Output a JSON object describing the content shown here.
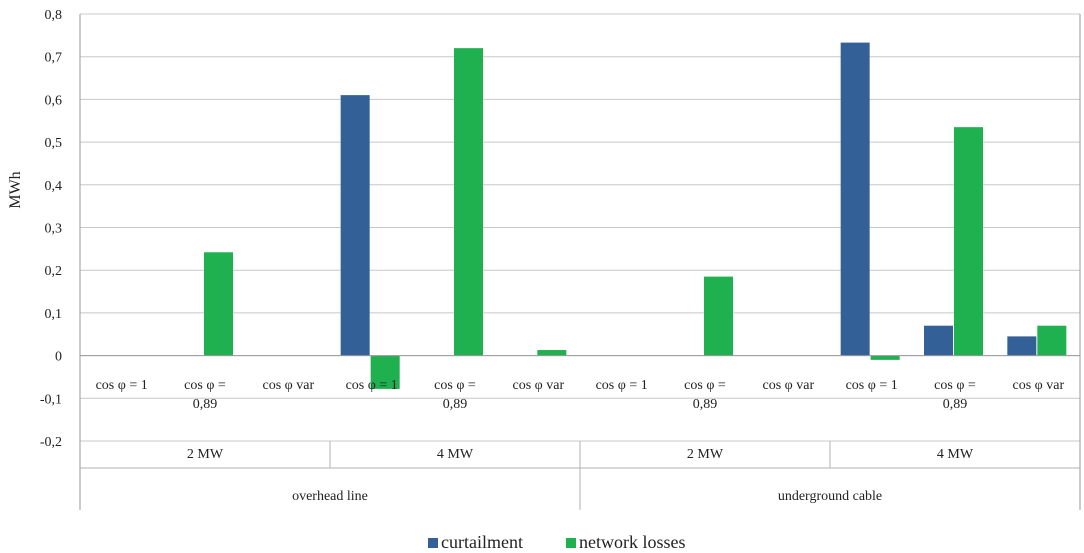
{
  "chart_data": {
    "type": "bar",
    "ylabel": "MWh",
    "ylim": [
      -0.2,
      0.8
    ],
    "yticks": [
      "-0,2",
      "-0,1",
      "0",
      "0,1",
      "0,2",
      "0,3",
      "0,4",
      "0,5",
      "0,6",
      "0,7",
      "0,8"
    ],
    "ytick_values": [
      -0.2,
      -0.1,
      0,
      0.1,
      0.2,
      0.3,
      0.4,
      0.5,
      0.6,
      0.7,
      0.8
    ],
    "grid": true,
    "legend_position": "bottom",
    "categories": [
      {
        "line1": "cos φ = 1",
        "line2": ""
      },
      {
        "line1": "cos φ =",
        "line2": "0,89"
      },
      {
        "line1": "cos φ var",
        "line2": ""
      },
      {
        "line1": "cos φ = 1",
        "line2": ""
      },
      {
        "line1": "cos φ =",
        "line2": "0,89"
      },
      {
        "line1": "cos φ var",
        "line2": ""
      },
      {
        "line1": "cos φ = 1",
        "line2": ""
      },
      {
        "line1": "cos φ =",
        "line2": "0,89"
      },
      {
        "line1": "cos φ var",
        "line2": ""
      },
      {
        "line1": "cos φ = 1",
        "line2": ""
      },
      {
        "line1": "cos φ =",
        "line2": "0,89"
      },
      {
        "line1": "cos φ var",
        "line2": ""
      }
    ],
    "level2": [
      "2 MW",
      "4 MW",
      "2 MW",
      "4 MW"
    ],
    "level3": [
      "overhead line",
      "underground cable"
    ],
    "series": [
      {
        "name": "curtailment",
        "color": "#346098",
        "values": [
          0,
          0,
          0,
          0.61,
          0,
          0,
          0,
          0,
          0,
          0.733,
          0.07,
          0.045
        ]
      },
      {
        "name": "network losses",
        "color": "#1fb04f",
        "values": [
          0,
          0.242,
          0,
          -0.078,
          0.72,
          0.013,
          0,
          0.185,
          0,
          -0.01,
          0.535,
          0.07
        ]
      }
    ]
  }
}
